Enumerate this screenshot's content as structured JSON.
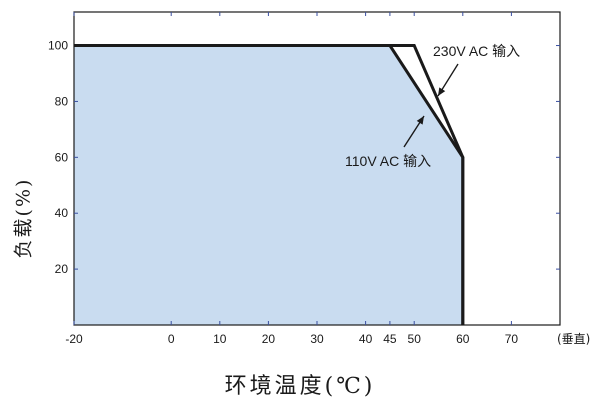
{
  "chart_data": {
    "type": "area",
    "xlabel": "环境温度(℃)",
    "ylabel": "负载(%)",
    "x_unit_note": "(垂直)",
    "xlim": [
      -20,
      80
    ],
    "ylim": [
      0,
      112
    ],
    "x_ticks": [
      -20,
      0,
      10,
      20,
      30,
      40,
      45,
      50,
      60,
      70
    ],
    "y_ticks": [
      20,
      40,
      60,
      80,
      100
    ],
    "grid": false,
    "series": [
      {
        "name": "110V AC 输入",
        "x": [
          -20,
          45,
          60,
          60
        ],
        "y": [
          100,
          100,
          60,
          0
        ]
      },
      {
        "name": "230V AC 输入",
        "x": [
          -20,
          50,
          60,
          60
        ],
        "y": [
          100,
          100,
          60,
          0
        ]
      }
    ],
    "annotations": [
      {
        "text": "230V AC 输入",
        "series": "230V AC 输入"
      },
      {
        "text": "110V AC 输入",
        "series": "110V AC 输入"
      }
    ],
    "colors": {
      "fill": "#c9dcf0",
      "line": "#1a1a1a",
      "tick": "#3a4fa0"
    }
  }
}
